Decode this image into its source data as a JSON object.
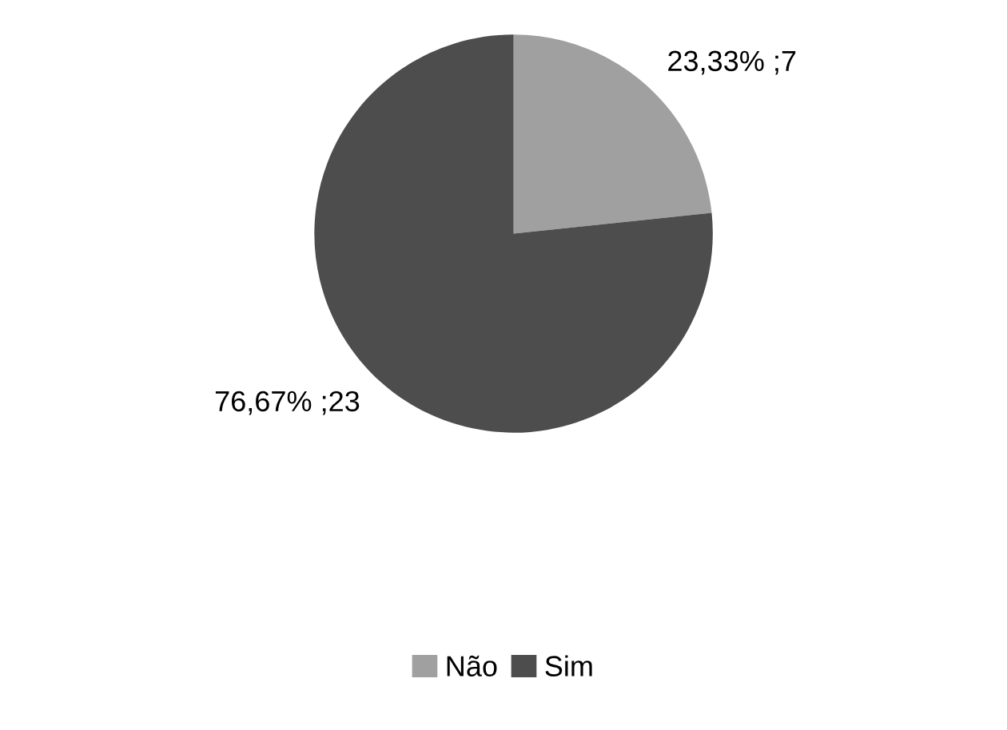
{
  "chart_data": {
    "type": "pie",
    "categories": [
      "Não",
      "Sim"
    ],
    "values": [
      7,
      23
    ],
    "colors": [
      "#a0a0a0",
      "#4d4d4d"
    ],
    "value_labels": [
      "23,33% ;7",
      "76,67% ;23"
    ],
    "legend": "bottom"
  }
}
